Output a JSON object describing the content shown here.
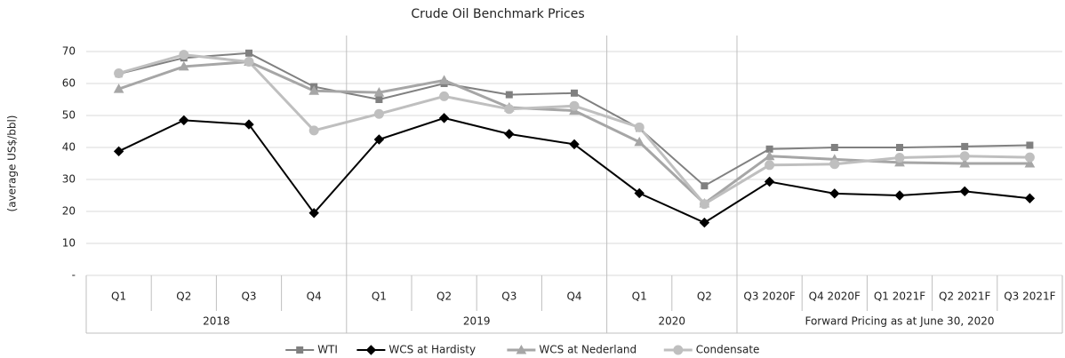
{
  "chart_data": {
    "type": "line",
    "title": "Crude Oil Benchmark Prices",
    "y_label": "(average US$/bbl)",
    "groups": [
      {
        "label": "2018",
        "categories": [
          "Q1",
          "Q2",
          "Q3",
          "Q4"
        ]
      },
      {
        "label": "2019",
        "categories": [
          "Q1",
          "Q2",
          "Q3",
          "Q4"
        ]
      },
      {
        "label": "2020",
        "categories": [
          "Q1",
          "Q2"
        ]
      },
      {
        "label": "Forward Pricing as at June 30, 2020",
        "categories": [
          "Q3 2020F",
          "Q4 2020F",
          "Q1 2021F",
          "Q2 2021F",
          "Q3 2021F"
        ]
      }
    ],
    "series": [
      {
        "name": "WTI",
        "color": "#808080",
        "marker": "square",
        "values": [
          63,
          68,
          69.5,
          59,
          55,
          60,
          56.5,
          57,
          46,
          28,
          39.5,
          40,
          40,
          40.3,
          40.7
        ]
      },
      {
        "name": "WCS at Hardisty",
        "color": "#000000",
        "marker": "diamond",
        "values": [
          38.8,
          48.5,
          47.2,
          19.5,
          42.5,
          49.2,
          44.2,
          41,
          25.7,
          16.5,
          29.3,
          25.6,
          25,
          26.3,
          24.1
        ]
      },
      {
        "name": "WCS at Nederland",
        "color": "#a6a6a6",
        "marker": "triangle",
        "values": [
          58.3,
          65.3,
          66.8,
          57.7,
          57.2,
          61,
          52.5,
          51.5,
          41.7,
          22.5,
          37.3,
          36.3,
          35.3,
          35,
          35
        ]
      },
      {
        "name": "Condensate",
        "color": "#bfbfbf",
        "marker": "circle",
        "values": [
          63.2,
          69,
          66.8,
          45.3,
          50.5,
          56,
          52,
          53,
          46.3,
          22.3,
          34.5,
          34.8,
          36.8,
          37.3,
          36.9
        ]
      }
    ],
    "ylim": [
      0,
      75
    ],
    "yticks": [
      {
        "value": 0,
        "label": "-"
      },
      10,
      20,
      30,
      40,
      50,
      60,
      70
    ],
    "grid": true,
    "legend": "bottom"
  }
}
